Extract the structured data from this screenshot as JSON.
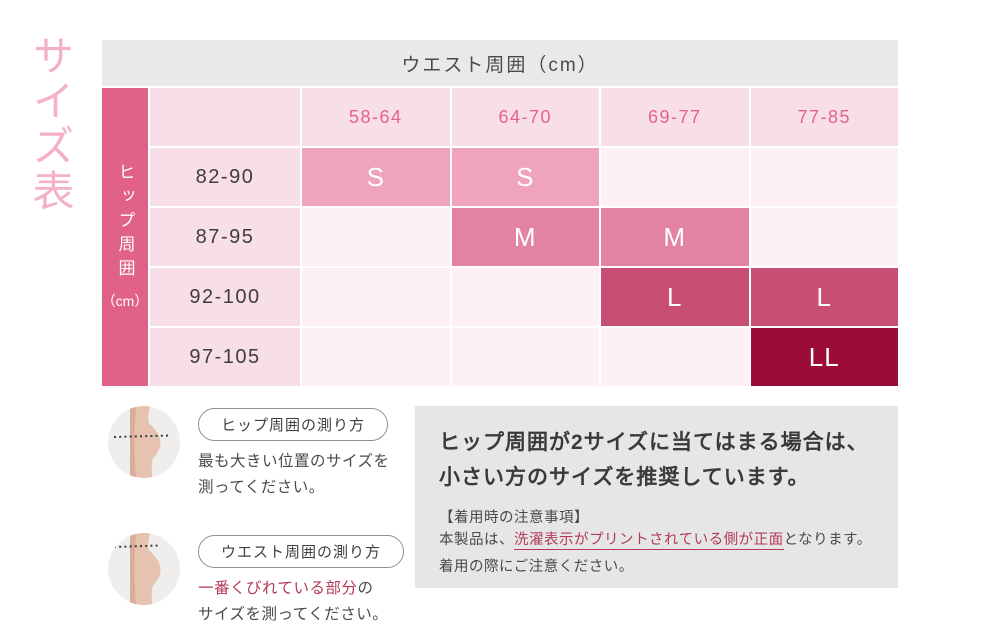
{
  "page_title": "サイズ表",
  "colors": {
    "size_S": "#efa3be",
    "size_M": "#e283a4",
    "size_L": "#c84e74",
    "size_LL": "#9b0c38",
    "hip_axis_bg": "#e06287",
    "table_header_bg": "#e9e9e9",
    "range_cell_bg": "#f8dee8",
    "empty_cell_bg": "#fdf1f5",
    "range_text": "#e2638d",
    "side_title_text": "#f3b0c8",
    "accent_text": "#b43a56",
    "notice_bg": "#e7e6e6"
  },
  "table": {
    "col_axis_title": "ウエスト周囲（cm）",
    "row_axis_title": "ヒップ周囲",
    "row_axis_unit": "（cm）",
    "waist_ranges": [
      "58-64",
      "64-70",
      "69-77",
      "77-85"
    ],
    "hip_ranges": [
      "82-90",
      "87-95",
      "92-100",
      "97-105"
    ],
    "cells": [
      [
        "S",
        "S",
        "",
        ""
      ],
      [
        "",
        "M",
        "M",
        ""
      ],
      [
        "",
        "",
        "L",
        "L"
      ],
      [
        "",
        "",
        "",
        "LL"
      ]
    ]
  },
  "instructions": [
    {
      "label": "ヒップ周囲の測り方",
      "line1": "最も大きい位置のサイズを",
      "line2": "測ってください。"
    },
    {
      "label": "ウエスト周囲の測り方",
      "line1_highlight": "一番くびれている部分",
      "line1_rest": "の",
      "line2": "サイズを測ってください。"
    }
  ],
  "notice": {
    "heading_line1": "ヒップ周囲が2サイズに当てはまる場合は、",
    "heading_line2": "小さい方のサイズを推奨しています。",
    "note_title": "【着用時の注意事項】",
    "note_prefix": "本製品は、",
    "note_highlight": "洗濯表示がプリントされている側が正面",
    "note_suffix": "となります。",
    "note_line2": "着用の際にご注意ください。"
  }
}
